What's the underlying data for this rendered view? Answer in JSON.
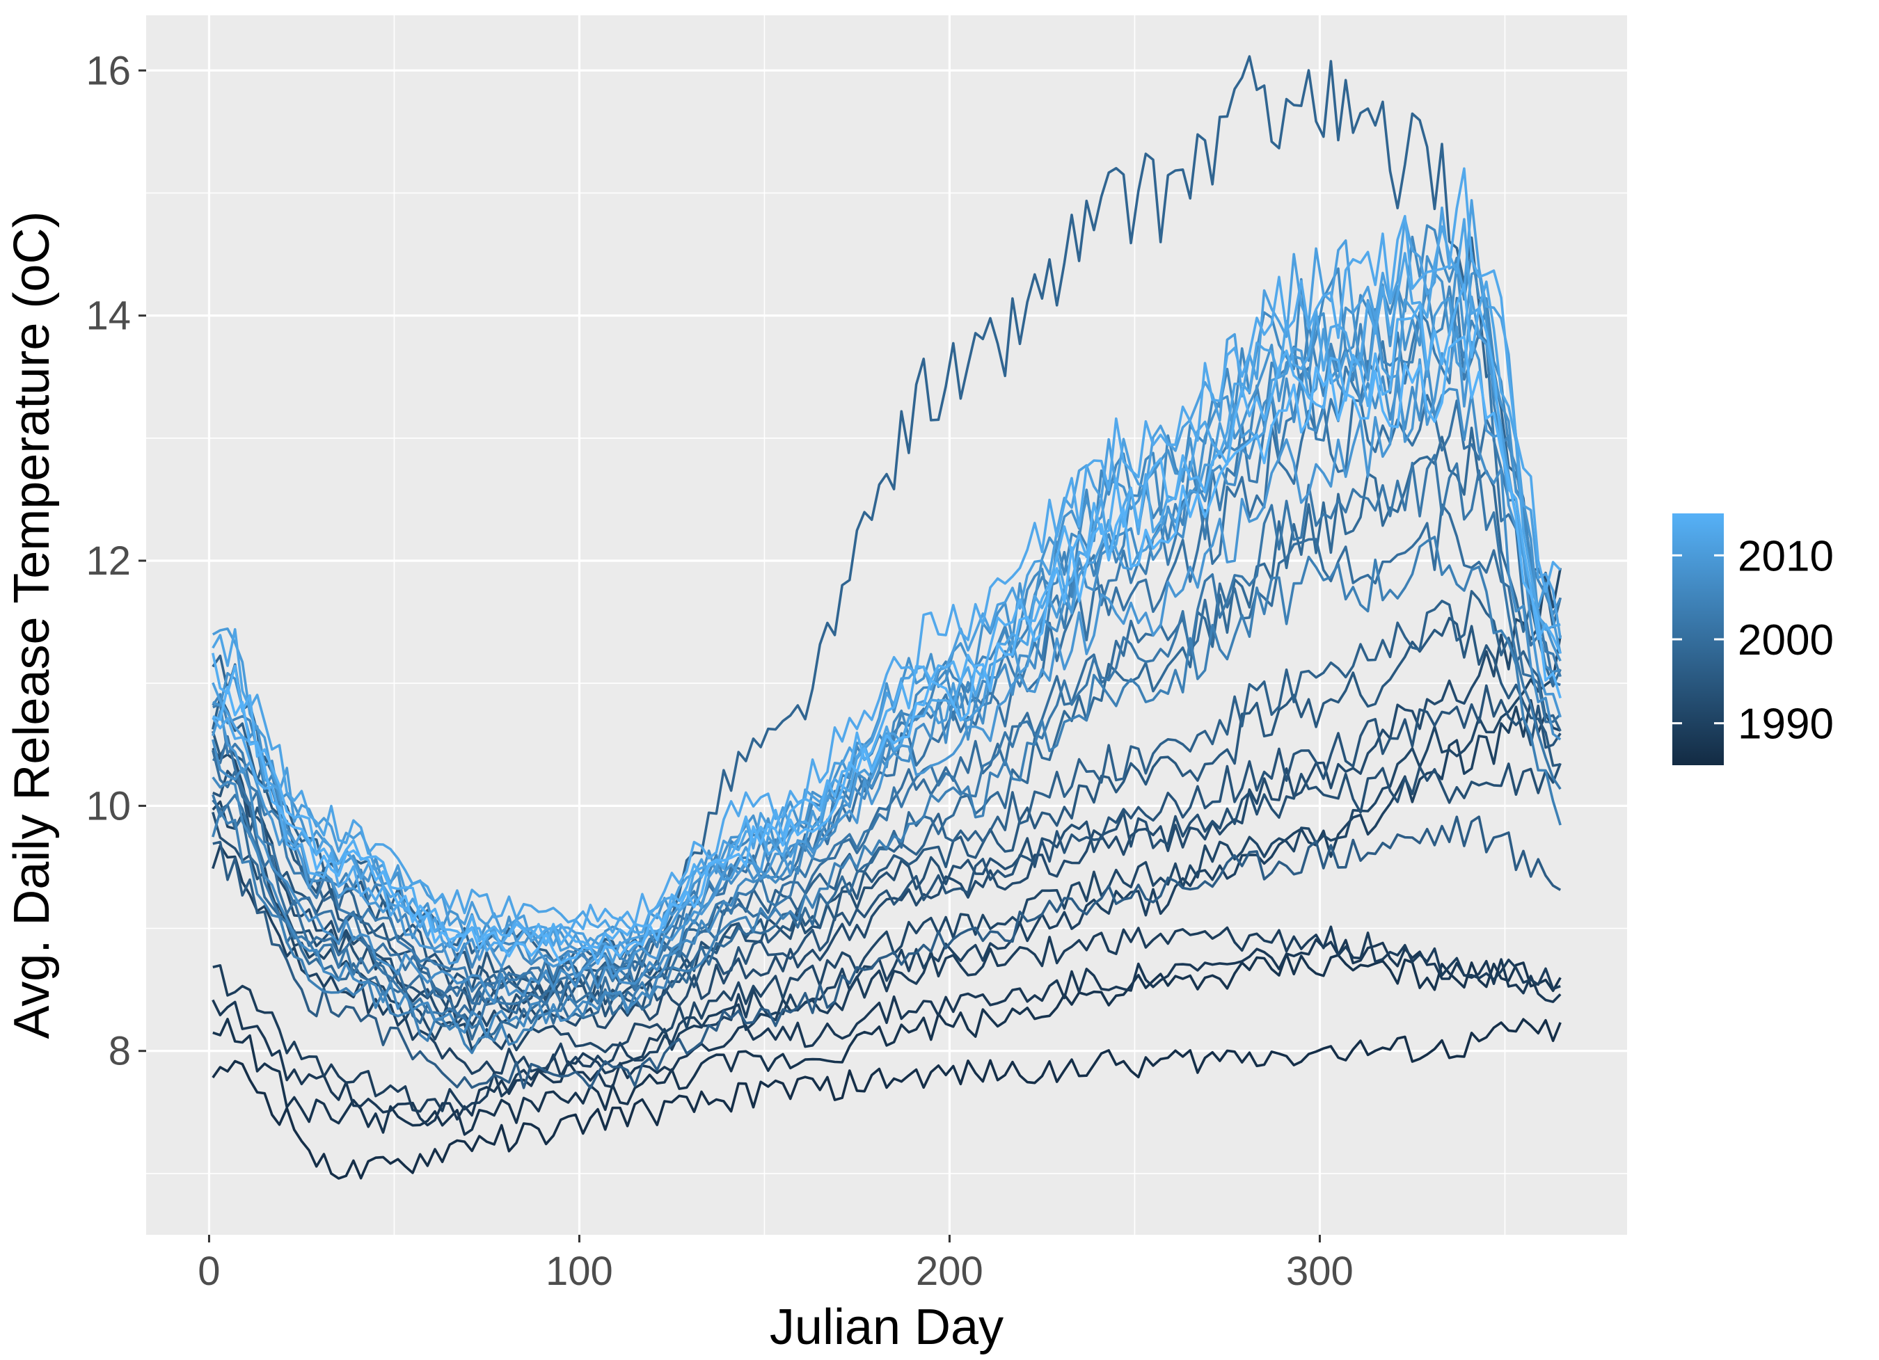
{
  "chart_data": {
    "type": "line",
    "xlabel": "Julian Day",
    "ylabel": "Avg. Daily Release Temperature (oC)",
    "xlim": [
      -17,
      383
    ],
    "ylim": [
      6.5,
      16.45
    ],
    "x_ticks": [
      0,
      100,
      200,
      300
    ],
    "x_tick_labels": [
      "0",
      "100",
      "200",
      "300"
    ],
    "y_ticks": [
      8,
      10,
      12,
      14,
      16
    ],
    "y_tick_labels": [
      "8",
      "10",
      "12",
      "14",
      "16"
    ],
    "grid": true,
    "background": "#ebebeb",
    "legend": {
      "placement": "right",
      "type": "colorbar",
      "color_low": "#132b43",
      "color_high": "#56b1f7",
      "range": [
        1985,
        2015
      ],
      "labels": [
        "2010",
        "2000",
        "1990"
      ],
      "label_values": [
        2010,
        2000,
        1990
      ]
    },
    "series": [
      {
        "year": 1986,
        "x": [
          1,
          40,
          80,
          120,
          160,
          200,
          250,
          300,
          330,
          365
        ],
        "y": [
          7.9,
          7.0,
          7.3,
          7.5,
          7.7,
          7.8,
          7.9,
          8.0,
          8.0,
          8.2
        ]
      },
      {
        "year": 1987,
        "x": [
          1,
          30,
          60,
          100,
          150,
          200,
          250,
          300,
          340,
          365
        ],
        "y": [
          8.2,
          7.5,
          7.4,
          7.6,
          7.9,
          8.2,
          8.5,
          8.7,
          8.6,
          8.6
        ]
      },
      {
        "year": 1988,
        "x": [
          1,
          30,
          60,
          100,
          150,
          200,
          250,
          300,
          340,
          365
        ],
        "y": [
          8.4,
          7.7,
          7.5,
          7.8,
          8.1,
          8.4,
          8.6,
          8.8,
          8.7,
          8.5
        ]
      },
      {
        "year": 1989,
        "x": [
          1,
          30,
          60,
          100,
          150,
          200,
          250,
          300,
          340,
          365
        ],
        "y": [
          8.6,
          7.9,
          7.6,
          7.9,
          8.3,
          8.7,
          8.9,
          8.9,
          8.7,
          8.6
        ]
      },
      {
        "year": 1990,
        "x": [
          1,
          30,
          70,
          110,
          150,
          200,
          250,
          300,
          340,
          365
        ],
        "y": [
          9.6,
          8.6,
          7.9,
          8.0,
          8.4,
          8.8,
          9.2,
          9.7,
          10.4,
          10.8
        ]
      },
      {
        "year": 1991,
        "x": [
          1,
          30,
          70,
          110,
          150,
          200,
          250,
          300,
          340,
          365
        ],
        "y": [
          10.0,
          8.8,
          8.1,
          8.1,
          8.5,
          9.0,
          9.4,
          9.8,
          10.6,
          11.2
        ]
      },
      {
        "year": 1992,
        "x": [
          1,
          30,
          70,
          110,
          150,
          200,
          250,
          300,
          340,
          365
        ],
        "y": [
          10.4,
          9.0,
          8.3,
          8.3,
          8.7,
          9.3,
          9.7,
          10.2,
          11.0,
          11.8
        ]
      },
      {
        "year": 1993,
        "x": [
          1,
          30,
          70,
          110,
          150,
          200,
          250,
          300,
          340,
          365
        ],
        "y": [
          9.8,
          8.9,
          8.4,
          8.5,
          9.0,
          9.5,
          9.8,
          10.1,
          10.2,
          10.3
        ]
      },
      {
        "year": 1994,
        "x": [
          1,
          30,
          70,
          110,
          150,
          200,
          250,
          300,
          340,
          365
        ],
        "y": [
          10.2,
          9.2,
          8.6,
          8.4,
          8.8,
          9.4,
          9.9,
          10.4,
          10.8,
          10.6
        ]
      },
      {
        "year": 1995,
        "x": [
          1,
          30,
          70,
          110,
          150,
          200,
          250,
          300,
          340,
          365
        ],
        "y": [
          10.6,
          9.4,
          8.7,
          8.6,
          9.0,
          9.6,
          10.2,
          10.8,
          11.4,
          10.4
        ]
      },
      {
        "year": 1996,
        "x": [
          1,
          30,
          70,
          110,
          150,
          200,
          250,
          300,
          340,
          365
        ],
        "y": [
          9.6,
          8.4,
          7.8,
          7.8,
          8.3,
          8.9,
          9.3,
          9.6,
          9.8,
          9.4
        ]
      },
      {
        "year": 1997,
        "x": [
          1,
          30,
          70,
          110,
          150,
          200,
          250,
          300,
          340,
          365
        ],
        "y": [
          10.8,
          9.6,
          8.9,
          8.8,
          9.2,
          9.8,
          10.4,
          11.0,
          11.6,
          10.8
        ]
      },
      {
        "year": 1998,
        "x": [
          1,
          30,
          70,
          110,
          150,
          200,
          250,
          290,
          330,
          365
        ],
        "y": [
          11.2,
          9.3,
          8.5,
          8.6,
          10.5,
          13.5,
          14.9,
          15.8,
          15.2,
          11.5
        ]
      },
      {
        "year": 1999,
        "x": [
          1,
          30,
          70,
          110,
          150,
          200,
          250,
          300,
          340,
          365
        ],
        "y": [
          10.0,
          8.7,
          8.2,
          8.4,
          9.0,
          9.9,
          11.0,
          12.3,
          12.8,
          11.0
        ]
      },
      {
        "year": 2000,
        "x": [
          1,
          30,
          70,
          110,
          150,
          200,
          250,
          300,
          340,
          365
        ],
        "y": [
          10.3,
          8.9,
          8.4,
          8.5,
          9.2,
          10.3,
          11.3,
          12.0,
          12.2,
          10.7
        ]
      },
      {
        "year": 2001,
        "x": [
          1,
          30,
          70,
          110,
          150,
          200,
          250,
          300,
          340,
          365
        ],
        "y": [
          10.5,
          9.1,
          8.5,
          8.7,
          9.5,
          10.6,
          11.8,
          13.0,
          13.2,
          11.0
        ]
      },
      {
        "year": 2002,
        "x": [
          1,
          30,
          70,
          110,
          150,
          200,
          250,
          300,
          340,
          365
        ],
        "y": [
          10.1,
          8.8,
          8.3,
          8.6,
          9.3,
          10.2,
          11.2,
          12.4,
          12.6,
          10.2
        ]
      },
      {
        "year": 2003,
        "x": [
          1,
          30,
          70,
          110,
          150,
          200,
          250,
          300,
          340,
          365
        ],
        "y": [
          10.7,
          9.3,
          8.6,
          8.7,
          9.6,
          10.8,
          12.0,
          13.3,
          13.8,
          11.2
        ]
      },
      {
        "year": 2004,
        "x": [
          1,
          30,
          70,
          110,
          150,
          200,
          250,
          300,
          340,
          365
        ],
        "y": [
          9.9,
          8.6,
          8.1,
          8.4,
          9.1,
          10.0,
          11.0,
          11.8,
          12.0,
          10.0
        ]
      },
      {
        "year": 2005,
        "x": [
          1,
          30,
          70,
          110,
          150,
          200,
          250,
          300,
          340,
          365
        ],
        "y": [
          10.9,
          9.5,
          8.8,
          8.8,
          9.7,
          11.0,
          12.3,
          13.6,
          14.0,
          11.5
        ]
      },
      {
        "year": 2006,
        "x": [
          1,
          30,
          70,
          110,
          150,
          200,
          250,
          300,
          340,
          365
        ],
        "y": [
          10.2,
          8.7,
          8.2,
          8.4,
          9.4,
          10.9,
          12.6,
          14.0,
          14.5,
          11.0
        ]
      },
      {
        "year": 2007,
        "x": [
          1,
          30,
          70,
          110,
          150,
          200,
          250,
          300,
          340,
          365
        ],
        "y": [
          10.4,
          9.0,
          8.5,
          8.6,
          9.5,
          10.7,
          12.1,
          13.4,
          13.3,
          10.5
        ]
      },
      {
        "year": 2008,
        "x": [
          1,
          30,
          70,
          110,
          150,
          200,
          250,
          300,
          340,
          365
        ],
        "y": [
          11.0,
          9.7,
          9.0,
          8.9,
          9.8,
          11.2,
          12.6,
          13.8,
          14.2,
          11.2
        ]
      },
      {
        "year": 2009,
        "x": [
          1,
          30,
          70,
          110,
          150,
          200,
          250,
          300,
          340,
          365
        ],
        "y": [
          10.6,
          9.4,
          8.8,
          8.7,
          9.5,
          10.5,
          11.6,
          12.8,
          13.6,
          10.8
        ]
      },
      {
        "year": 2010,
        "x": [
          1,
          30,
          70,
          110,
          150,
          200,
          250,
          300,
          340,
          365
        ],
        "y": [
          11.3,
          9.8,
          9.1,
          8.8,
          9.6,
          10.8,
          12.2,
          13.6,
          13.9,
          11.4
        ]
      },
      {
        "year": 2011,
        "x": [
          1,
          30,
          70,
          110,
          150,
          200,
          250,
          300,
          340,
          365
        ],
        "y": [
          10.8,
          9.6,
          8.9,
          8.9,
          9.8,
          11.2,
          12.8,
          14.2,
          14.6,
          11.6
        ]
      },
      {
        "year": 2012,
        "x": [
          1,
          30,
          70,
          110,
          150,
          200,
          250,
          300,
          340,
          365
        ],
        "y": [
          11.4,
          9.9,
          9.2,
          9.0,
          9.7,
          10.9,
          12.4,
          13.9,
          14.4,
          11.3
        ]
      },
      {
        "year": 2013,
        "x": [
          1,
          30,
          70,
          110,
          150,
          200,
          250,
          300,
          340,
          365
        ],
        "y": [
          10.7,
          9.5,
          8.9,
          9.1,
          10.0,
          11.4,
          12.9,
          14.1,
          14.8,
          11.8
        ]
      },
      {
        "year": 2014,
        "x": [
          1,
          30,
          70,
          110,
          150,
          200,
          250,
          300,
          340,
          365
        ],
        "y": [
          11.1,
          9.7,
          9.0,
          8.9,
          9.8,
          11.1,
          12.5,
          13.5,
          13.9,
          11.2
        ]
      },
      {
        "year": 2015,
        "x": [
          1,
          30,
          70,
          110,
          150,
          200,
          250,
          300,
          340,
          365
        ],
        "y": [
          10.9,
          9.6,
          8.9,
          8.8,
          9.7,
          10.9,
          12.2,
          13.3,
          13.5,
          10.9
        ]
      }
    ]
  }
}
